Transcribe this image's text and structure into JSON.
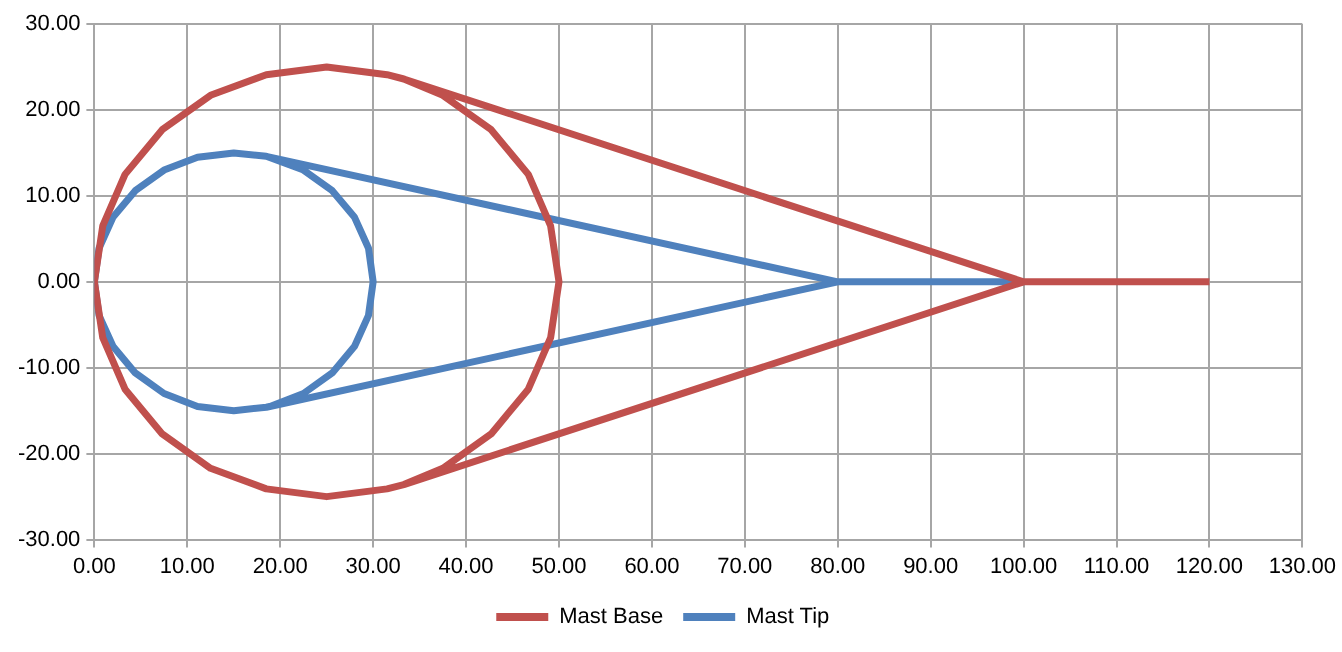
{
  "chart_data": {
    "type": "line",
    "legend": "bottom",
    "grid": true,
    "marker": "none",
    "line_style": "solid",
    "xlim": [
      0,
      130
    ],
    "ylim": [
      -30,
      30
    ],
    "xticks": [
      {
        "value": 0,
        "label": "0.00"
      },
      {
        "value": 10,
        "label": "10.00"
      },
      {
        "value": 20,
        "label": "20.00"
      },
      {
        "value": 30,
        "label": "30.00"
      },
      {
        "value": 40,
        "label": "40.00"
      },
      {
        "value": 50,
        "label": "50.00"
      },
      {
        "value": 60,
        "label": "60.00"
      },
      {
        "value": 70,
        "label": "70.00"
      },
      {
        "value": 80,
        "label": "80.00"
      },
      {
        "value": 90,
        "label": "90.00"
      },
      {
        "value": 100,
        "label": "100.00"
      },
      {
        "value": 110,
        "label": "110.00"
      },
      {
        "value": 120,
        "label": "120.00"
      },
      {
        "value": 130,
        "label": "130.00"
      }
    ],
    "yticks": [
      {
        "value": -30,
        "label": "-30.00"
      },
      {
        "value": -20,
        "label": "-20.00"
      },
      {
        "value": -10,
        "label": "-10.00"
      },
      {
        "value": 0,
        "label": "0.00"
      },
      {
        "value": 10,
        "label": "10.00"
      },
      {
        "value": 20,
        "label": "20.00"
      },
      {
        "value": 30,
        "label": "30.00"
      }
    ],
    "series": [
      {
        "name": "Mast Base",
        "color": "#c0504d",
        "x": [
          120,
          100,
          33.3,
          31.5,
          25,
          18.5,
          12.5,
          7.3,
          3.3,
          0.9,
          0,
          0.9,
          3.3,
          7.3,
          12.5,
          18.5,
          25,
          31.5,
          33.3,
          37.5,
          42.7,
          46.7,
          49.1,
          50,
          49.1,
          46.7,
          42.7,
          37.5,
          33.3,
          100,
          33.3
        ],
        "values": [
          0,
          0,
          23.6,
          24.1,
          25,
          24.1,
          21.7,
          17.7,
          12.5,
          6.5,
          0,
          -6.5,
          -12.5,
          -17.7,
          -21.7,
          -24.1,
          -25,
          -24.1,
          -23.6,
          -21.7,
          -17.7,
          -12.5,
          -6.5,
          0,
          6.5,
          12.5,
          17.7,
          21.7,
          23.6,
          0,
          -23.6
        ]
      },
      {
        "name": "Mast Tip",
        "color": "#4f81bd",
        "x": [
          100,
          80,
          18.5,
          15,
          11.1,
          7.5,
          4.4,
          2,
          0.5,
          0,
          0.5,
          2,
          4.4,
          7.5,
          11.1,
          15,
          18.5,
          18.9,
          22.5,
          25.6,
          28,
          29.5,
          30,
          29.5,
          28,
          25.6,
          22.5,
          18.5,
          80,
          18.5
        ],
        "values": [
          0,
          0,
          14.6,
          15,
          14.5,
          13,
          10.6,
          7.5,
          3.9,
          0,
          -3.9,
          -7.5,
          -10.6,
          -13,
          -14.5,
          -15,
          -14.6,
          -14.5,
          -13,
          -10.6,
          -7.5,
          -3.9,
          0,
          3.9,
          7.5,
          10.6,
          13,
          14.6,
          0,
          -14.6
        ]
      }
    ]
  }
}
